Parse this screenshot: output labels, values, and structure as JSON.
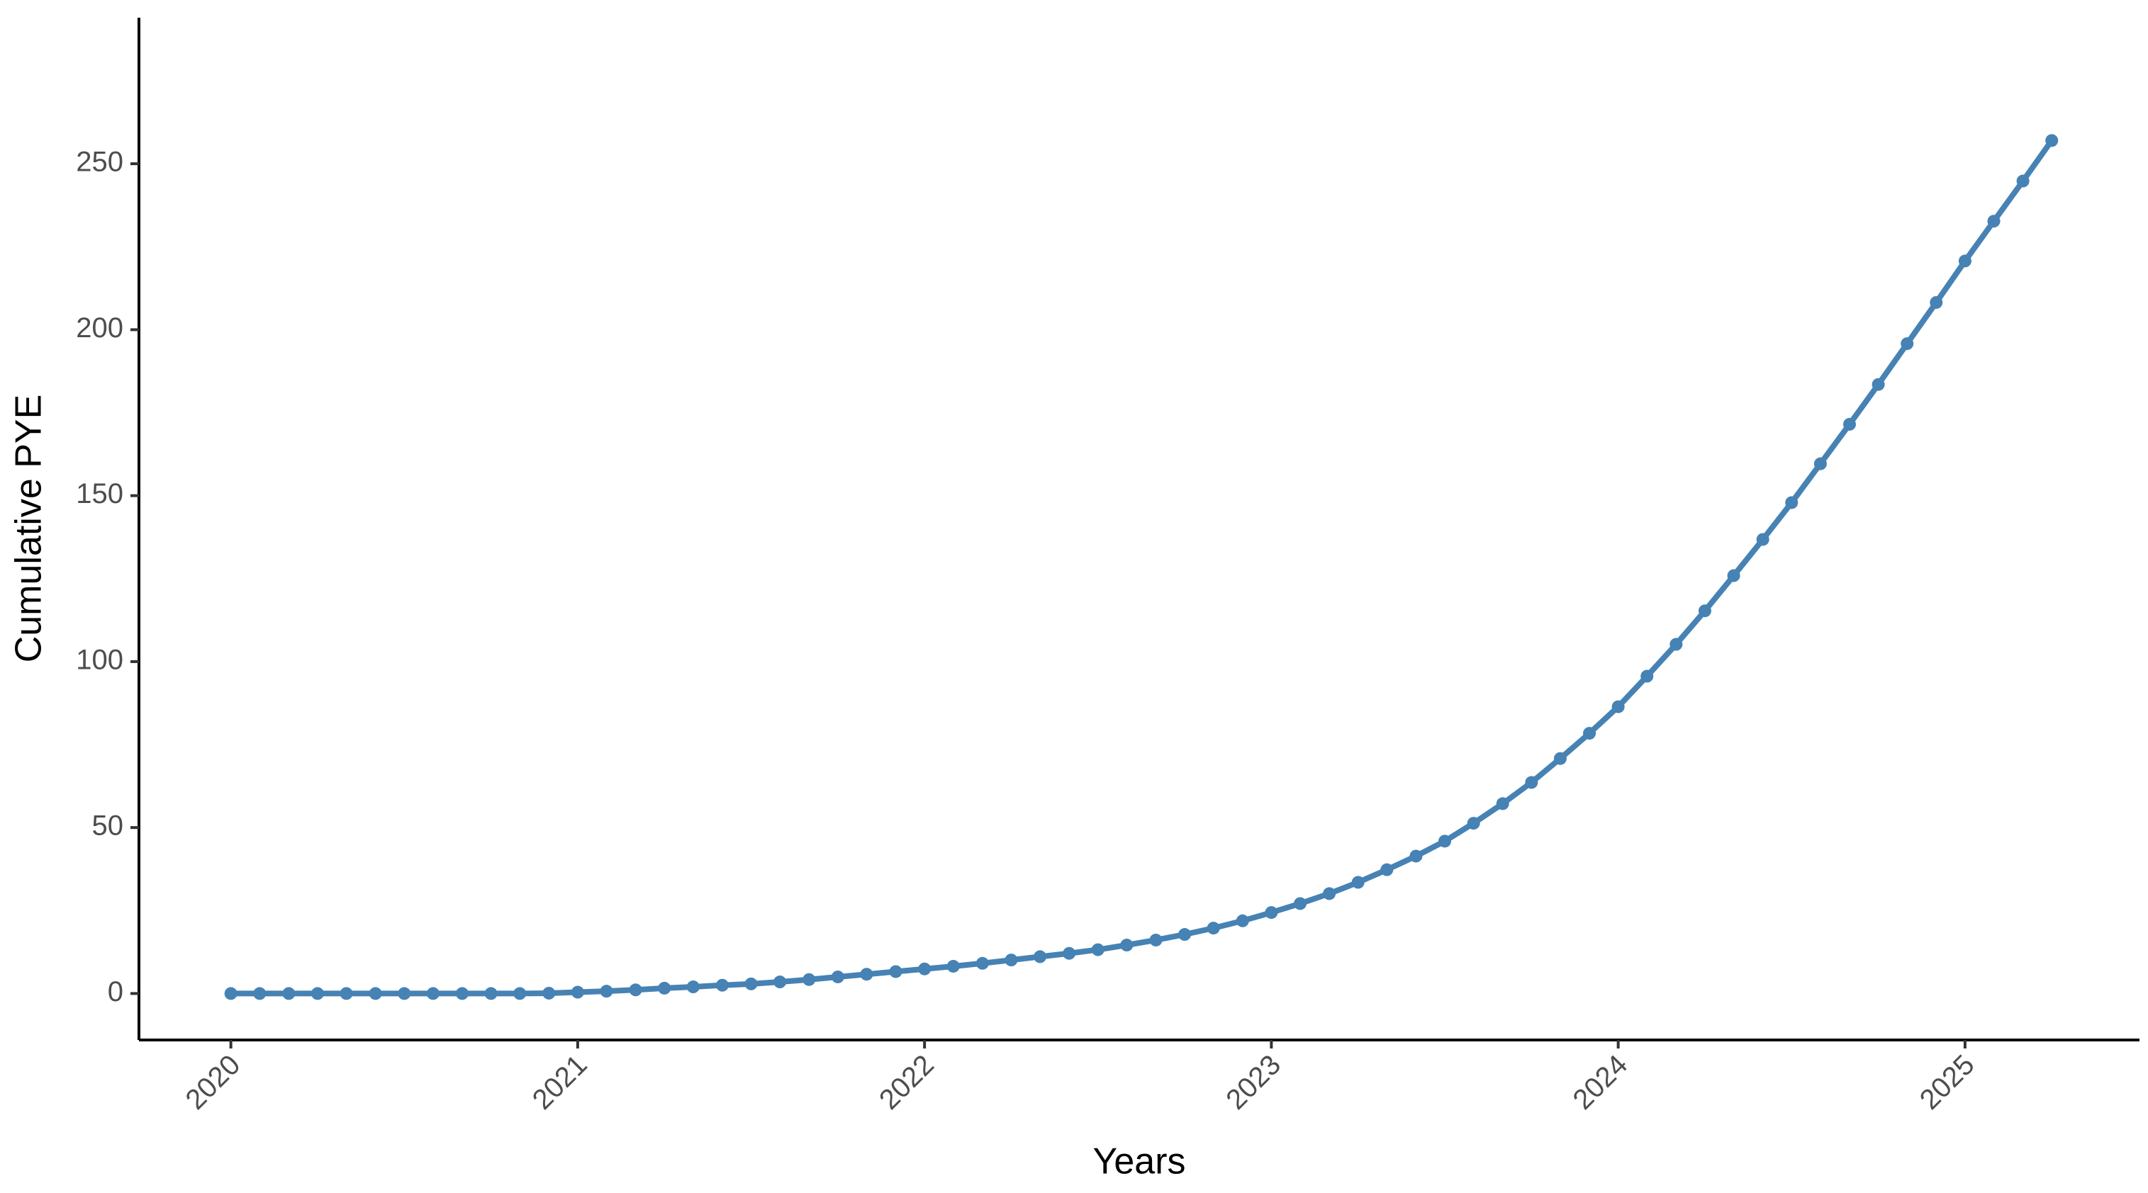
{
  "chart_data": {
    "type": "line",
    "x_label": "Years",
    "y_label": "Cumulative PYE",
    "x": [
      2020,
      2020.083,
      2020.167,
      2020.25,
      2020.333,
      2020.417,
      2020.5,
      2020.583,
      2020.667,
      2020.75,
      2020.833,
      2020.917,
      2021,
      2021.083,
      2021.167,
      2021.25,
      2021.333,
      2021.417,
      2021.5,
      2021.583,
      2021.667,
      2021.75,
      2021.833,
      2021.917,
      2022,
      2022.083,
      2022.167,
      2022.25,
      2022.333,
      2022.417,
      2022.5,
      2022.583,
      2022.667,
      2022.75,
      2022.833,
      2022.917,
      2023,
      2023.083,
      2023.167,
      2023.25,
      2023.333,
      2023.417,
      2023.5,
      2023.583,
      2023.667,
      2023.75,
      2023.833,
      2023.917,
      2024,
      2024.083,
      2024.167,
      2024.25,
      2024.333,
      2024.417,
      2024.5,
      2024.583,
      2024.667,
      2024.75,
      2024.833,
      2024.917,
      2025,
      2025.083,
      2025.167,
      2025.25
    ],
    "series": [
      {
        "name": "Cumulative PYE",
        "color": "#4682b4",
        "values": [
          0,
          0,
          0,
          0,
          0,
          0,
          0,
          0,
          0,
          0,
          0,
          0.1,
          0.4,
          0.7,
          1.1,
          1.6,
          2.0,
          2.5,
          2.9,
          3.5,
          4.2,
          5.0,
          5.8,
          6.6,
          7.4,
          8.2,
          9.1,
          10.1,
          11.1,
          12.1,
          13.2,
          14.6,
          16.1,
          17.8,
          19.7,
          21.9,
          24.4,
          27.1,
          30.1,
          33.5,
          37.3,
          41.4,
          45.9,
          51.3,
          57.2,
          63.6,
          70.8,
          78.4,
          86.4,
          95.6,
          105.2,
          115.3,
          125.9,
          136.8,
          147.9,
          159.6,
          171.5,
          183.5,
          195.8,
          208.2,
          220.7,
          232.7,
          244.8,
          257
        ]
      }
    ],
    "xlim": [
      2019.735,
      2025.503
    ],
    "xticks": [
      2020,
      2021,
      2022,
      2023,
      2024,
      2025
    ],
    "ylim": [
      -14,
      294
    ],
    "yticks": [
      0,
      50,
      100,
      150,
      200,
      250
    ],
    "grid": false
  }
}
